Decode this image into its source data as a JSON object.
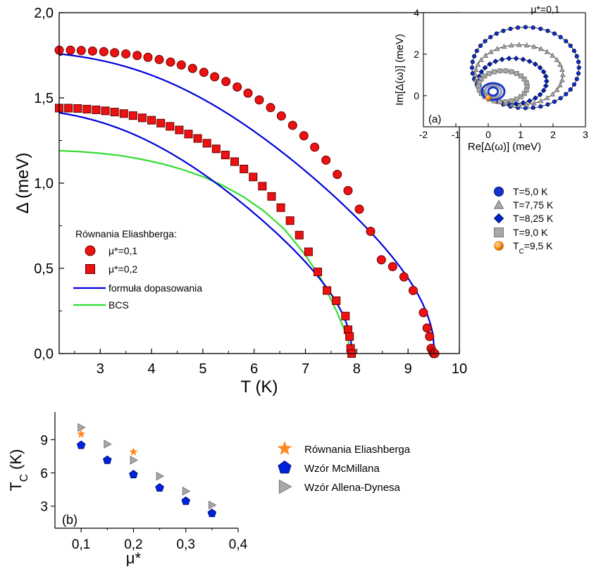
{
  "chart_data": [
    {
      "id": "main",
      "type": "line",
      "xlabel": "T (K)",
      "ylabel": "Δ (meV)",
      "xlim": [
        2.2,
        10
      ],
      "ylim": [
        0,
        2
      ],
      "xticks": [
        3,
        4,
        5,
        6,
        7,
        8,
        9,
        10
      ],
      "xtick_labels": [
        "3",
        "4",
        "5",
        "6",
        "7",
        "8",
        "9",
        "10"
      ],
      "yticks": [
        0,
        0.5,
        1.0,
        1.5,
        2.0
      ],
      "ytick_labels": [
        "0,0",
        "0,5",
        "1,0",
        "1,5",
        "2,0"
      ],
      "legend_title": "Równania Eliashberga:",
      "legend_position": "lower-left",
      "series": [
        {
          "name": "μ*=0,1",
          "marker": "circle",
          "color": "#ee1111",
          "x": [
            2.2,
            2.42,
            2.63,
            2.85,
            3.07,
            3.28,
            3.5,
            3.72,
            3.93,
            4.15,
            4.37,
            4.58,
            4.8,
            5.02,
            5.23,
            5.45,
            5.67,
            5.88,
            6.1,
            6.32,
            6.53,
            6.75,
            6.97,
            7.18,
            7.4,
            7.62,
            7.83,
            8.05,
            8.27,
            8.48,
            8.7,
            8.92,
            9.1,
            9.3,
            9.37,
            9.42,
            9.45,
            9.48,
            9.5,
            9.52
          ],
          "y": [
            1.78,
            1.78,
            1.778,
            1.775,
            1.771,
            1.765,
            1.758,
            1.749,
            1.738,
            1.725,
            1.71,
            1.693,
            1.673,
            1.65,
            1.624,
            1.596,
            1.564,
            1.528,
            1.488,
            1.443,
            1.394,
            1.339,
            1.278,
            1.211,
            1.135,
            1.051,
            0.956,
            0.847,
            0.717,
            0.55,
            0.51,
            0.45,
            0.37,
            0.24,
            0.15,
            0.1,
            0.03,
            0.01,
            0.0,
            0.0
          ]
        },
        {
          "name": "μ*=0,2",
          "marker": "square",
          "color": "#ee1111",
          "x": [
            2.2,
            2.38,
            2.56,
            2.74,
            2.92,
            3.1,
            3.28,
            3.46,
            3.64,
            3.82,
            4.0,
            4.18,
            4.36,
            4.54,
            4.72,
            4.9,
            5.08,
            5.26,
            5.44,
            5.62,
            5.8,
            5.98,
            6.16,
            6.34,
            6.52,
            6.7,
            6.88,
            7.06,
            7.24,
            7.42,
            7.6,
            7.78,
            7.83,
            7.86,
            7.88,
            7.9
          ],
          "y": [
            1.44,
            1.44,
            1.438,
            1.434,
            1.43,
            1.424,
            1.417,
            1.408,
            1.396,
            1.383,
            1.369,
            1.352,
            1.333,
            1.312,
            1.288,
            1.262,
            1.234,
            1.201,
            1.165,
            1.126,
            1.083,
            1.036,
            0.982,
            0.922,
            0.856,
            0.78,
            0.695,
            0.597,
            0.479,
            0.37,
            0.31,
            0.22,
            0.14,
            0.1,
            0.03,
            0.0
          ]
        },
        {
          "name": "formuła dopasowania",
          "marker": "line",
          "color": "#0000dd",
          "fit_tc": [
            9.52,
            7.91
          ],
          "fit_delta0": [
            1.78,
            1.445
          ]
        },
        {
          "name": "BCS",
          "marker": "line",
          "color": "#33dd33",
          "x": [
            2.2,
            2.6,
            3.0,
            3.4,
            3.8,
            4.2,
            4.6,
            5.0,
            5.4,
            5.8,
            6.2,
            6.6,
            7.0,
            7.3,
            7.6,
            7.8,
            7.9
          ],
          "y": [
            1.19,
            1.185,
            1.175,
            1.161,
            1.14,
            1.114,
            1.08,
            1.038,
            0.985,
            0.918,
            0.834,
            0.726,
            0.578,
            0.44,
            0.253,
            0.11,
            0.0
          ]
        }
      ]
    },
    {
      "id": "inset",
      "type": "scatter",
      "panel_label": "(a)",
      "annotation": "μ*=0,1",
      "xlabel": "Re[Δ(ω)] (meV)",
      "ylabel": "Im[Δ(ω)] (meV)",
      "xlim": [
        -2,
        3
      ],
      "ylim": [
        -1.5,
        4
      ],
      "xticks": [
        -2,
        -1,
        0,
        1,
        2,
        3
      ],
      "xtick_labels": [
        "-2",
        "-1",
        "0",
        "1",
        "2",
        "3"
      ],
      "yticks": [
        0,
        2,
        4
      ],
      "ytick_labels": [
        "0",
        "2",
        "4"
      ],
      "series": [
        {
          "name": "T=5,0 K",
          "marker": "circle",
          "color": "#1133cc",
          "ellipse": {
            "cx": 1.15,
            "cy": 1.35,
            "rx": 1.65,
            "ry": 1.95
          }
        },
        {
          "name": "T=7,75 K",
          "marker": "triangle",
          "color": "#a8a8a8",
          "ellipse": {
            "cx": 0.95,
            "cy": 1.0,
            "rx": 1.35,
            "ry": 1.45
          }
        },
        {
          "name": "T=8,25 K",
          "marker": "diamond",
          "color": "#0022cc",
          "ellipse": {
            "cx": 0.75,
            "cy": 0.7,
            "rx": 1.05,
            "ry": 1.1
          }
        },
        {
          "name": "T=9,0 K",
          "marker": "square",
          "color": "#a8a8a8",
          "ellipse": {
            "cx": 0.45,
            "cy": 0.45,
            "rx": 0.75,
            "ry": 0.75
          }
        },
        {
          "name": "TC=9,5 K",
          "name_main": "T",
          "name_sub": "C",
          "name_rest": "=9,5 K",
          "marker": "sphere",
          "color": "#ff8800",
          "points": [
            [
              0.0,
              -0.1
            ]
          ]
        }
      ]
    },
    {
      "id": "panel_b",
      "type": "scatter",
      "panel_label": "(b)",
      "xlabel": "μ*",
      "ylabel_main": "T",
      "ylabel_sub": "C",
      "ylabel_rest": " (K)",
      "xlim": [
        0.05,
        0.4
      ],
      "ylim": [
        1.0,
        11.5
      ],
      "xticks": [
        0.1,
        0.2,
        0.3,
        0.4
      ],
      "xtick_labels": [
        "0,1",
        "0,2",
        "0,3",
        "0,4"
      ],
      "yticks": [
        3,
        6,
        9
      ],
      "ytick_labels": [
        "3",
        "6",
        "9"
      ],
      "legend_position": "right",
      "series": [
        {
          "name": "Równania Eliashberga",
          "marker": "star",
          "color": "#ff8822",
          "x": [
            0.1,
            0.2
          ],
          "y": [
            9.5,
            7.9
          ]
        },
        {
          "name": "Wzór McMillana",
          "marker": "pentagon",
          "color": "#0022dd",
          "x": [
            0.1,
            0.15,
            0.2,
            0.25,
            0.3,
            0.35
          ],
          "y": [
            8.5,
            7.15,
            5.85,
            4.65,
            3.45,
            2.35
          ]
        },
        {
          "name": "Wzór Allena-Dynesa",
          "marker": "triangle-right",
          "color": "#a8a8a8",
          "x": [
            0.1,
            0.15,
            0.2,
            0.25,
            0.3,
            0.35
          ],
          "y": [
            10.1,
            8.6,
            7.15,
            5.7,
            4.35,
            3.1
          ]
        }
      ]
    }
  ]
}
